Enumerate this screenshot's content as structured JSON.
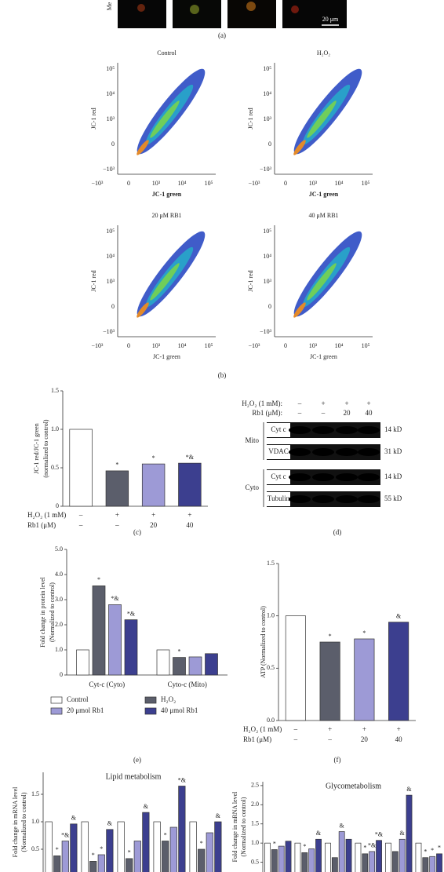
{
  "image_strip": {
    "row_label": "Me",
    "scale_bar": "20 μm"
  },
  "panel_labels": [
    "(a)",
    "(b)",
    "(c)",
    "(d)",
    "(e)",
    "(f)"
  ],
  "cytometry": {
    "xticks": [
      "−10³",
      "0",
      "10³",
      "10⁴",
      "10⁵"
    ],
    "yticks": [
      "10⁵",
      "10⁴",
      "10³",
      "0",
      "−10³"
    ],
    "plots": [
      {
        "title": "Control",
        "xlabel": "JC-1 green",
        "ylabel": "JC-1 red"
      },
      {
        "title": "H₂O₂",
        "xlabel": "JC-1 green",
        "ylabel": "JC-1 red"
      },
      {
        "title": "20 μM RB1",
        "xlabel": "JC-1 green",
        "ylabel": "JC-1 red"
      },
      {
        "title": "40 μM RB1",
        "xlabel": "JC-1 green",
        "ylabel": "JC-1 red"
      }
    ]
  },
  "blot": {
    "header": [
      {
        "label": "H₂O₂ (1 mM):",
        "values": [
          "–",
          "+",
          "+",
          "+"
        ]
      },
      {
        "label": "Rb1 (μM):",
        "values": [
          "–",
          "–",
          "20",
          "40"
        ]
      }
    ],
    "groups": [
      {
        "label": "Mito",
        "rows": [
          {
            "protein": "Cyt c",
            "size": "14 kD"
          },
          {
            "protein": "VDAC",
            "size": "31 kD"
          }
        ]
      },
      {
        "label": "Cyto",
        "rows": [
          {
            "protein": "Cyt c",
            "size": "14 kD"
          },
          {
            "protein": "Tubulin",
            "size": "55 kD"
          }
        ]
      }
    ]
  },
  "chart_data": [
    {
      "type": "bar",
      "ylabel": [
        "JC-1 red/JC-1 green",
        "(normalized to control)"
      ],
      "categories": [
        null
      ],
      "series": [
        {
          "color": "#ffffff",
          "values": [
            1.0
          ],
          "marks": [
            null
          ]
        },
        {
          "color": "#5b5e6b",
          "values": [
            0.46
          ],
          "marks": [
            "*"
          ]
        },
        {
          "color": "#9d9ad6",
          "values": [
            0.55
          ],
          "marks": [
            "*"
          ]
        },
        {
          "color": "#3c3f8f",
          "values": [
            0.56
          ],
          "marks": [
            "*&"
          ]
        }
      ],
      "ylim": [
        0,
        1.5
      ],
      "yticks": [
        0,
        0.5,
        {
          "value": 1,
          "label": "1.0"
        },
        1.5
      ],
      "conditions": [
        {
          "label": "H₂O₂ (1 mM)",
          "values": [
            "–",
            "+",
            "+",
            "+"
          ]
        },
        {
          "label": "Rb1 (μM)",
          "values": [
            "–",
            "–",
            "20",
            "40"
          ]
        }
      ]
    },
    {
      "type": "bar",
      "ylabel": [
        "Fold change in protein level",
        "(Normalized to control)"
      ],
      "categories": [
        "Cyt-c (Cyto)",
        "Cyto-c (Mito)"
      ],
      "series": [
        {
          "name": "Control",
          "color": "#ffffff",
          "values": [
            1.0,
            1.0
          ],
          "marks": [
            null,
            null
          ]
        },
        {
          "name": "H₂O₂",
          "color": "#5b5e6b",
          "values": [
            3.55,
            0.7
          ],
          "marks": [
            "*",
            "*"
          ]
        },
        {
          "name": "20 μmol Rb1",
          "color": "#9d9ad6",
          "values": [
            2.8,
            0.72
          ],
          "marks": [
            "*&",
            null
          ]
        },
        {
          "name": "40 μmol Rb1",
          "color": "#3c3f8f",
          "values": [
            2.2,
            0.85
          ],
          "marks": [
            "*&",
            null
          ]
        }
      ],
      "ylim": [
        0,
        5
      ],
      "yticks": [
        0,
        {
          "value": 1,
          "label": "1.0"
        },
        {
          "value": 2,
          "label": "2.0"
        },
        {
          "value": 3,
          "label": "3.0"
        },
        {
          "value": 4,
          "label": "4.0"
        },
        {
          "value": 5,
          "label": "5.0"
        }
      ]
    },
    {
      "type": "bar",
      "ylabel": [
        "ATP (Normalized to control)"
      ],
      "categories": [
        null
      ],
      "series": [
        {
          "color": "#ffffff",
          "values": [
            1.0
          ],
          "marks": [
            null
          ]
        },
        {
          "color": "#5b5e6b",
          "values": [
            0.75
          ],
          "marks": [
            "*"
          ]
        },
        {
          "color": "#9d9ad6",
          "values": [
            0.78
          ],
          "marks": [
            "*"
          ]
        },
        {
          "color": "#3c3f8f",
          "values": [
            0.94
          ],
          "marks": [
            "&"
          ]
        }
      ],
      "ylim": [
        0,
        1.5
      ],
      "yticks": [
        {
          "value": 0,
          "label": "0.0"
        },
        0.5,
        {
          "value": 1,
          "label": "1.0"
        },
        1.5
      ],
      "conditions": [
        {
          "label": "H₂O₂ (1 mM)",
          "values": [
            "–",
            "+",
            "+",
            "+"
          ]
        },
        {
          "label": "Rb1 (μM)",
          "values": [
            "–",
            "–",
            "20",
            "40"
          ]
        }
      ]
    },
    {
      "type": "bar",
      "title": "Lipid metabolism",
      "ylabel": [
        "Fold change in mRNA level",
        "(Normalized to control)"
      ],
      "categories": [
        null,
        null,
        null,
        null,
        null
      ],
      "series": [
        {
          "color": "#ffffff",
          "values": [
            1.0,
            1.0,
            1.0,
            1.0,
            1.0
          ],
          "marks": [
            null,
            null,
            null,
            null,
            null
          ]
        },
        {
          "color": "#5b5e6b",
          "values": [
            0.38,
            0.28,
            0.33,
            0.65,
            0.5
          ],
          "marks": [
            "*",
            "*",
            "*",
            "*",
            "*"
          ]
        },
        {
          "color": "#9d9ad6",
          "values": [
            0.65,
            0.4,
            0.65,
            0.9,
            0.8
          ],
          "marks": [
            "*&",
            "*",
            null,
            null,
            null
          ]
        },
        {
          "color": "#3c3f8f",
          "values": [
            0.96,
            0.86,
            1.17,
            1.65,
            1.0
          ],
          "marks": [
            "&",
            "&",
            "&",
            "*&",
            "&"
          ]
        }
      ],
      "ylim": [
        0,
        1.9
      ],
      "yticks": [
        0.5,
        {
          "value": 1,
          "label": "1.0"
        },
        1.5
      ]
    },
    {
      "type": "bar",
      "title": "Glycometabolism",
      "ylabel": [
        "Fold change in mRNA level",
        "(Normalized to control)"
      ],
      "categories": [
        null,
        null,
        null,
        null,
        null,
        null
      ],
      "series": [
        {
          "color": "#ffffff",
          "values": [
            1.0,
            1.0,
            1.0,
            1.0,
            1.0,
            1.0
          ],
          "marks": [
            null,
            null,
            null,
            null,
            null,
            null
          ]
        },
        {
          "color": "#5b5e6b",
          "values": [
            0.83,
            0.75,
            0.62,
            0.72,
            0.78,
            0.62
          ],
          "marks": [
            "*",
            "*",
            null,
            "*",
            null,
            "*"
          ]
        },
        {
          "color": "#9d9ad6",
          "values": [
            0.92,
            0.85,
            1.3,
            0.78,
            1.1,
            0.65
          ],
          "marks": [
            null,
            null,
            "&",
            "*&",
            "&",
            "*"
          ]
        },
        {
          "color": "#3c3f8f",
          "values": [
            1.05,
            1.1,
            1.1,
            1.07,
            2.25,
            0.72
          ],
          "marks": [
            null,
            "&",
            null,
            "*&",
            "&",
            "*"
          ]
        }
      ],
      "ylim": [
        0,
        2.6
      ],
      "yticks": [
        0.5,
        {
          "value": 1,
          "label": "1.0"
        },
        1.5,
        {
          "value": 2,
          "label": "2.0"
        },
        2.5
      ]
    }
  ]
}
